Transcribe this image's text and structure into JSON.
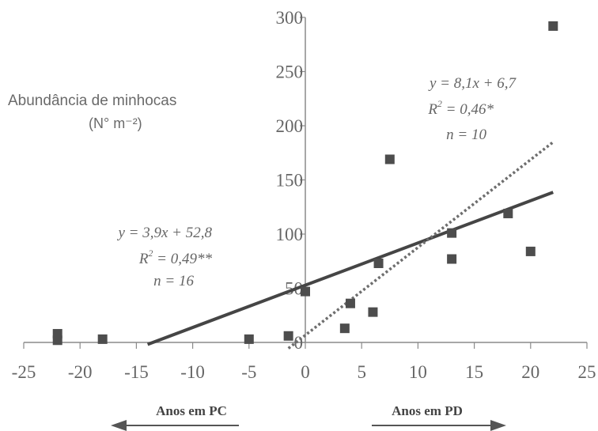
{
  "chart_data": {
    "type": "scatter",
    "ylabel": "Abundância de minhocas",
    "ylabel_unit": "(N° m⁻²)",
    "xlim": [
      -25,
      25
    ],
    "ylim": [
      0,
      300
    ],
    "x_ticks": [
      "-25",
      "-20",
      "-15",
      "-10",
      "-5",
      "0",
      "5",
      "10",
      "15",
      "20",
      "25"
    ],
    "y_ticks": [
      "0",
      "50",
      "100",
      "150",
      "200",
      "250",
      "300"
    ],
    "grid": false,
    "points": [
      {
        "x": -22,
        "y": 8
      },
      {
        "x": -22,
        "y": 2
      },
      {
        "x": -18,
        "y": 3
      },
      {
        "x": -5,
        "y": 3
      },
      {
        "x": -1.5,
        "y": 6
      },
      {
        "x": 0,
        "y": 47
      },
      {
        "x": 3.5,
        "y": 13
      },
      {
        "x": 4,
        "y": 36
      },
      {
        "x": 6,
        "y": 28
      },
      {
        "x": 6.5,
        "y": 73
      },
      {
        "x": 7.5,
        "y": 169
      },
      {
        "x": 13,
        "y": 101
      },
      {
        "x": 13,
        "y": 77
      },
      {
        "x": 18,
        "y": 119
      },
      {
        "x": 20,
        "y": 84
      },
      {
        "x": 22,
        "y": 292
      }
    ],
    "trendlines": [
      {
        "style": "solid",
        "slope": 3.9,
        "intercept": 52.8,
        "x_range": [
          -14,
          22
        ]
      },
      {
        "style": "dotted",
        "slope": 8.1,
        "intercept": 6.7,
        "x_range": [
          -1.5,
          22
        ]
      }
    ],
    "annotations": {
      "left": {
        "equation": "y = 3,9x + 52,8",
        "r2_label": "R",
        "r2_sup": "2",
        "r2_value": " = 0,49**",
        "n": "n = 16"
      },
      "right": {
        "equation": "y = 8,1x + 6,7",
        "r2_label": "R",
        "r2_sup": "2",
        "r2_value": " = 0,46*",
        "n": "n = 10"
      }
    },
    "arrows": {
      "left": "Anos em PC",
      "right": "Anos em PD"
    },
    "colors": {
      "axis": "#8a8a8a",
      "marker": "#4d4d4d",
      "solid_line": "#454545",
      "dotted_line": "#6e6e6e",
      "text": "#666666"
    }
  }
}
